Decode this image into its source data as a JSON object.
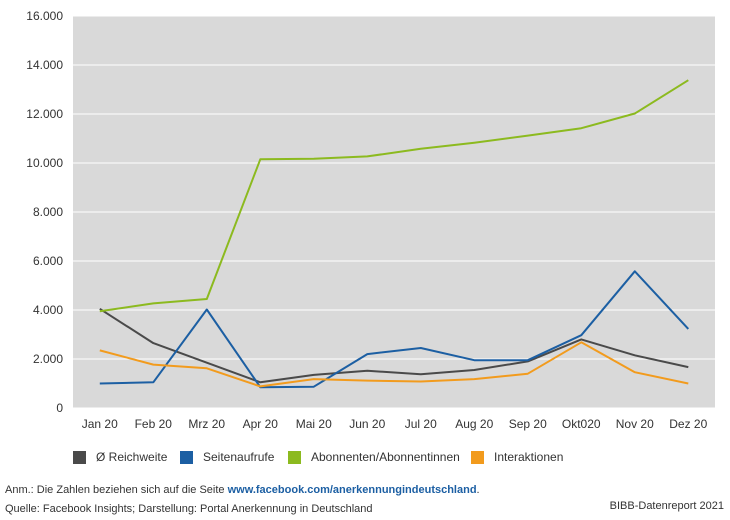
{
  "chart_data": {
    "type": "line",
    "categories": [
      "Jan 20",
      "Feb 20",
      "Mrz 20",
      "Apr 20",
      "Mai 20",
      "Jun 20",
      "Jul 20",
      "Aug 20",
      "Sep 20",
      "Okt020",
      "Nov 20",
      "Dez 20"
    ],
    "series": [
      {
        "name": "Ø Reichweite",
        "color": "#4a4a4a",
        "values": [
          4050,
          2650,
          1850,
          1050,
          1350,
          1520,
          1380,
          1550,
          1900,
          2800,
          2150,
          1670
        ]
      },
      {
        "name": "Seitenaufrufe",
        "color": "#1c5fa3",
        "values": [
          1000,
          1050,
          4020,
          850,
          870,
          2200,
          2450,
          1950,
          1950,
          2970,
          5580,
          3230
        ]
      },
      {
        "name": "Abonnenten/Abonnentinnen",
        "color": "#8cba1f",
        "values": [
          3950,
          4270,
          4450,
          10150,
          10170,
          10270,
          10580,
          10830,
          11120,
          11420,
          12020,
          13380
        ]
      },
      {
        "name": "Interaktionen",
        "color": "#f29b1d",
        "values": [
          2350,
          1770,
          1620,
          880,
          1180,
          1120,
          1080,
          1180,
          1400,
          2680,
          1460,
          1000
        ]
      }
    ],
    "ylim": [
      0,
      16000
    ],
    "yticks": [
      "0",
      "2.000",
      "4.000",
      "6.000",
      "8.000",
      "10.000",
      "12.000",
      "14.000",
      "16.000"
    ],
    "grid": "horizontal",
    "legend": "bottom"
  },
  "notes": {
    "anm_prefix": "Anm.: Die Zahlen beziehen sich auf die Seite ",
    "anm_link": "www.facebook.com/anerkennungindeutschland",
    "anm_suffix": ".",
    "source": "Quelle: Facebook Insights; Darstellung: Portal Anerkennung in Deutschland"
  },
  "credit": "BIBB-Datenreport 2021"
}
